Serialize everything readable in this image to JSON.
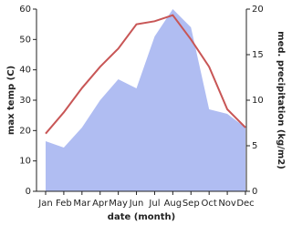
{
  "chart_data": {
    "type": "line-area",
    "categories": [
      "Jan",
      "Feb",
      "Mar",
      "Apr",
      "May",
      "Jun",
      "Jul",
      "Aug",
      "Sep",
      "Oct",
      "Nov",
      "Dec"
    ],
    "xlabel": "date (month)",
    "ylabel": "max temp (C)",
    "y2label": "med. precipitation (kg/m2)",
    "series": [
      {
        "name": "max temp",
        "type": "line",
        "color": "#c85656",
        "values": [
          19,
          26,
          34,
          41,
          47,
          55,
          56,
          58,
          50,
          41,
          27,
          21
        ]
      },
      {
        "name": "med. precipitation",
        "type": "area",
        "axis": "y2",
        "color": "#b0bdf2",
        "values": [
          5.5,
          4.8,
          7,
          10,
          12.3,
          11.3,
          17,
          20,
          18,
          9,
          8.5,
          7
        ]
      }
    ],
    "ylim": [
      0,
      60
    ],
    "yticks": [
      0,
      10,
      20,
      30,
      40,
      50,
      60
    ],
    "y2lim": [
      0,
      20
    ],
    "y2ticks": [
      0,
      5,
      10,
      15,
      20
    ]
  }
}
